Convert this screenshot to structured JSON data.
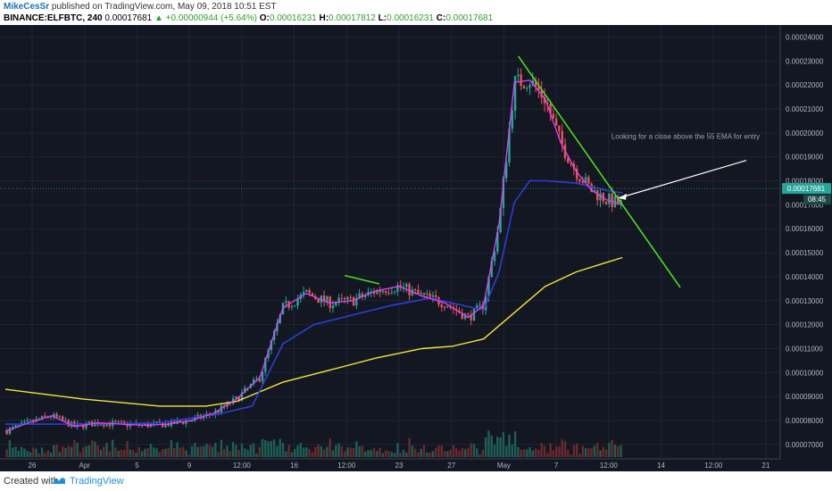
{
  "header": {
    "author": "MikeCesSr",
    "published": "published on TradingView.com, May 09, 2018 10:51 EST",
    "symbol": "BINANCE:ELFBTC, 240",
    "last": "0.00017681",
    "change": "▲ +0.00000944 (+5.64%)",
    "o_label": "O:",
    "o": "0.00016231",
    "h_label": "H:",
    "h": "0.00017812",
    "l_label": "L:",
    "l": "0.00016231",
    "c_label": "C:",
    "c": "0.00017681"
  },
  "footer": {
    "created_with": "Created with",
    "brand": "TradingView",
    "logo_icon": "tradingview-logo-icon"
  },
  "colors": {
    "background": "#131722",
    "grid": "#1e2433",
    "up": "#26a69a",
    "down": "#ef5350",
    "ema_fast": "#e040fb",
    "ema_55": "#2b3fd6",
    "ema_200": "#f5e33a",
    "trendline": "#4cdc1f",
    "annotation": "#9aa3b5",
    "price_tag": "#26a69a"
  },
  "chart_data": {
    "type": "line",
    "title": "",
    "xlabel": "",
    "ylabel": "",
    "ylim": [
      6.4e-05,
      0.000245
    ],
    "x_ticks": [
      "26",
      "Apr",
      "5",
      "9",
      "12:00",
      "16",
      "12:00",
      "23",
      "27",
      "May",
      "7",
      "12:00",
      "14",
      "12:00",
      "21"
    ],
    "y_ticks": [
      "0.00007000",
      "0.00008000",
      "0.00009000",
      "0.00010000",
      "0.00011000",
      "0.00012000",
      "0.00013000",
      "0.00014000",
      "0.00015000",
      "0.00016000",
      "0.00017000",
      "0.00018000",
      "0.00019000",
      "0.00020000",
      "0.00021000",
      "0.00022000",
      "0.00023000",
      "0.00024000"
    ],
    "x_domain": [
      0,
      100
    ],
    "series": [
      {
        "type": "line",
        "points": [
          [
            0,
            7.55e-05
          ],
          [
            3,
            7.9e-05
          ],
          [
            6,
            8.2e-05
          ],
          [
            9,
            7.75e-05
          ],
          [
            12,
            7.9e-05
          ],
          [
            15,
            7.85e-05
          ],
          [
            18,
            7.8e-05
          ],
          [
            21,
            7.85e-05
          ],
          [
            24,
            8e-05
          ],
          [
            27,
            8.3e-05
          ],
          [
            30,
            8.9e-05
          ],
          [
            33,
            9.8e-05
          ],
          [
            36,
            0.000127
          ],
          [
            39,
            0.000133
          ],
          [
            42,
            0.000129
          ],
          [
            45,
            0.00013
          ],
          [
            48,
            0.000134
          ],
          [
            51,
            0.000136
          ],
          [
            54,
            0.000132
          ],
          [
            57,
            0.000129
          ],
          [
            60,
            0.000123
          ],
          [
            62,
            0.000128
          ],
          [
            64,
            0.000162
          ],
          [
            66,
            0.000221
          ],
          [
            68,
            0.000222
          ],
          [
            70,
            0.000214
          ],
          [
            72,
            0.000196
          ],
          [
            74,
            0.000184
          ],
          [
            76,
            0.000176
          ],
          [
            78,
            0.000172
          ],
          [
            80,
            0.00017
          ]
        ]
      },
      {
        "type": "line",
        "points": [
          [
            0,
            7.85e-05
          ],
          [
            10,
            7.85e-05
          ],
          [
            20,
            7.9e-05
          ],
          [
            28,
            8.3e-05
          ],
          [
            32,
            8.6e-05
          ],
          [
            36,
            0.000112
          ],
          [
            40,
            0.00012
          ],
          [
            45,
            0.000124
          ],
          [
            50,
            0.000128
          ],
          [
            55,
            0.000131
          ],
          [
            58,
            0.000129
          ],
          [
            62,
            0.000126
          ],
          [
            64,
            0.000142
          ],
          [
            66,
            0.000171
          ],
          [
            68,
            0.00018
          ],
          [
            70,
            0.00018
          ],
          [
            74,
            0.000179
          ],
          [
            78,
            0.000176
          ],
          [
            80,
            0.000175
          ]
        ]
      },
      {
        "type": "line",
        "points": [
          [
            0,
            9.3e-05
          ],
          [
            10,
            8.9e-05
          ],
          [
            20,
            8.6e-05
          ],
          [
            26,
            8.6e-05
          ],
          [
            30,
            8.8e-05
          ],
          [
            36,
            9.6e-05
          ],
          [
            42,
            0.000101
          ],
          [
            48,
            0.000106
          ],
          [
            54,
            0.00011
          ],
          [
            58,
            0.000111
          ],
          [
            62,
            0.000114
          ],
          [
            66,
            0.000125
          ],
          [
            70,
            0.000136
          ],
          [
            74,
            0.000142
          ],
          [
            78,
            0.000146
          ],
          [
            80,
            0.000148
          ]
        ]
      },
      {
        "type": "line",
        "points": [
          [
            66.5,
            0.000232
          ],
          [
            87.5,
            0.0001355
          ]
        ]
      }
    ],
    "annotations": [
      {
        "text": "Looking for a close above the 55 EMA for entry"
      }
    ],
    "price_tags": [
      {
        "value": 0.00017681,
        "label": "0.00017681"
      },
      {
        "label": "08:45"
      }
    ],
    "grid": true
  }
}
